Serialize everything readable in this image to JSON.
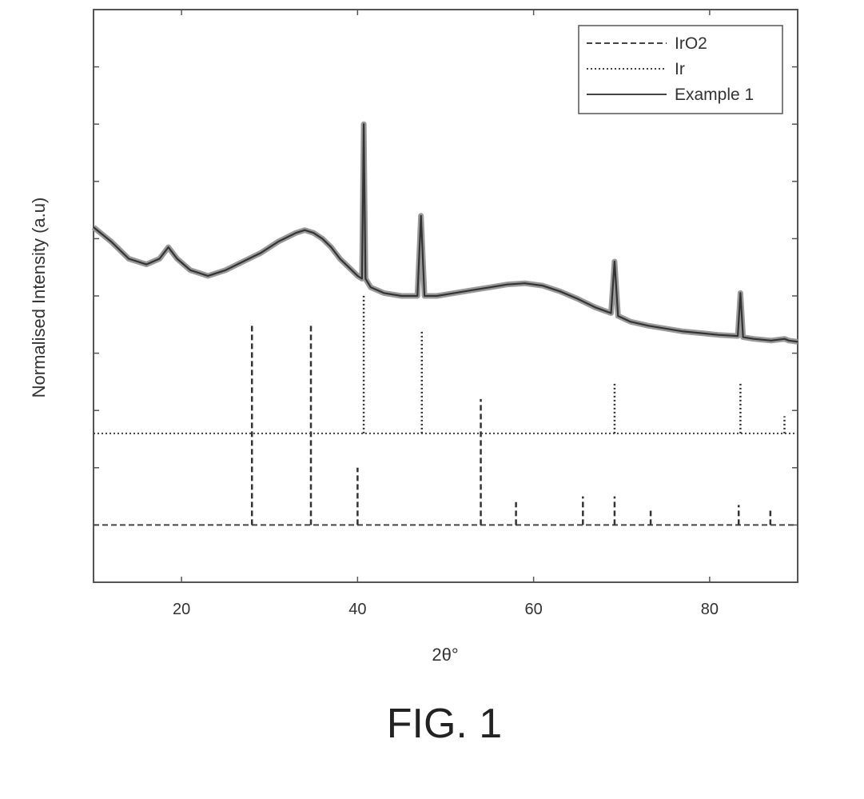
{
  "chart_data": {
    "type": "line",
    "title": "",
    "xlabel": "2θ°",
    "ylabel": "Normalised Intensity (a.u)",
    "xlim": [
      10,
      90
    ],
    "ylim": [
      0,
      10
    ],
    "x_ticks": [
      20,
      40,
      60,
      80
    ],
    "y_ticks_labeled": false,
    "grid": false,
    "legend_position": "top-right",
    "series": [
      {
        "name": "IrO2",
        "style": "dashed",
        "baseline": 1,
        "peaks": [
          {
            "x": 28.0,
            "h": 3.5
          },
          {
            "x": 34.7,
            "h": 3.5
          },
          {
            "x": 40.0,
            "h": 1.0
          },
          {
            "x": 54.0,
            "h": 2.2
          },
          {
            "x": 58.0,
            "h": 0.4
          },
          {
            "x": 65.6,
            "h": 0.5
          },
          {
            "x": 69.2,
            "h": 0.5
          },
          {
            "x": 73.3,
            "h": 0.25
          },
          {
            "x": 83.3,
            "h": 0.35
          },
          {
            "x": 86.9,
            "h": 0.25
          }
        ]
      },
      {
        "name": "Ir",
        "style": "dotted",
        "baseline": 2.6,
        "peaks": [
          {
            "x": 40.7,
            "h": 2.4
          },
          {
            "x": 47.3,
            "h": 1.8
          },
          {
            "x": 69.2,
            "h": 0.9
          },
          {
            "x": 83.5,
            "h": 0.9
          },
          {
            "x": 88.5,
            "h": 0.3
          }
        ]
      },
      {
        "name": "Example 1",
        "style": "solid",
        "x": [
          10,
          12,
          14,
          16,
          17.5,
          18.5,
          19.5,
          21,
          23,
          25,
          27,
          29,
          31,
          33,
          34,
          35,
          36,
          37,
          38,
          39,
          40,
          40.5,
          40.7,
          40.9,
          41.5,
          43,
          45,
          46.8,
          47.2,
          47.6,
          49,
          51,
          53,
          55,
          57,
          59,
          61,
          63,
          65,
          67,
          68.8,
          69.2,
          69.6,
          71,
          73,
          75,
          77,
          79,
          81,
          83.2,
          83.5,
          83.8,
          85,
          87,
          88.5,
          89,
          90
        ],
        "y": [
          6.2,
          5.95,
          5.65,
          5.55,
          5.65,
          5.85,
          5.65,
          5.45,
          5.35,
          5.45,
          5.6,
          5.75,
          5.95,
          6.1,
          6.15,
          6.1,
          6.0,
          5.85,
          5.65,
          5.5,
          5.35,
          5.3,
          8.0,
          5.3,
          5.15,
          5.05,
          5.0,
          5.0,
          6.4,
          5.0,
          5.0,
          5.05,
          5.1,
          5.15,
          5.2,
          5.22,
          5.18,
          5.08,
          4.95,
          4.8,
          4.7,
          5.6,
          4.65,
          4.55,
          4.48,
          4.43,
          4.38,
          4.35,
          4.32,
          4.3,
          5.05,
          4.28,
          4.25,
          4.22,
          4.25,
          4.22,
          4.2
        ]
      }
    ]
  },
  "caption": "FIG. 1"
}
